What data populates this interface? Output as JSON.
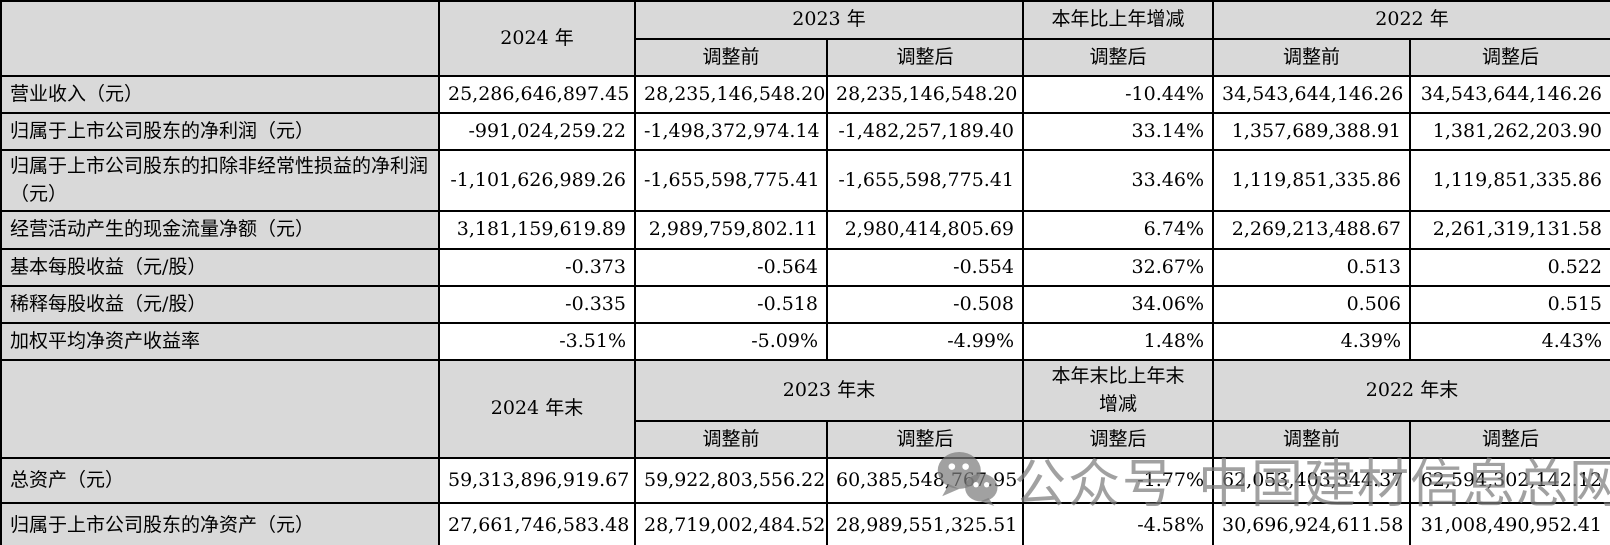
{
  "page": {
    "background": "#ffffff",
    "grid_color": "#000000",
    "header_fill": "#d9d9d9",
    "text_color": "#000000"
  },
  "table": {
    "section1": {
      "headers": {
        "y_current": "2024 年",
        "y_prior": "2023 年",
        "change": "本年比上年增减",
        "y_prior2": "2022 年",
        "adj_before": "调整前",
        "adj_after": "调整后"
      },
      "rows": [
        {
          "label": "营业收入（元）",
          "values": [
            "25,286,646,897.45",
            "28,235,146,548.20",
            "28,235,146,548.20",
            "-10.44%",
            "34,543,644,146.26",
            "34,543,644,146.26"
          ]
        },
        {
          "label": "归属于上市公司股东的净利润（元）",
          "values": [
            "-991,024,259.22",
            "-1,498,372,974.14",
            "-1,482,257,189.40",
            "33.14%",
            "1,357,689,388.91",
            "1,381,262,203.90"
          ]
        },
        {
          "label": "归属于上市公司股东的扣除非经常性损益的净利润（元）",
          "values": [
            "-1,101,626,989.26",
            "-1,655,598,775.41",
            "-1,655,598,775.41",
            "33.46%",
            "1,119,851,335.86",
            "1,119,851,335.86"
          ]
        },
        {
          "label": "经营活动产生的现金流量净额（元）",
          "values": [
            "3,181,159,619.89",
            "2,989,759,802.11",
            "2,980,414,805.69",
            "6.74%",
            "2,269,213,488.67",
            "2,261,319,131.58"
          ]
        },
        {
          "label": "基本每股收益（元/股）",
          "values": [
            "-0.373",
            "-0.564",
            "-0.554",
            "32.67%",
            "0.513",
            "0.522"
          ]
        },
        {
          "label": "稀释每股收益（元/股）",
          "values": [
            "-0.335",
            "-0.518",
            "-0.508",
            "34.06%",
            "0.506",
            "0.515"
          ]
        },
        {
          "label": "加权平均净资产收益率",
          "values": [
            "-3.51%",
            "-5.09%",
            "-4.99%",
            "1.48%",
            "4.39%",
            "4.43%"
          ]
        }
      ]
    },
    "section2": {
      "headers": {
        "y_current": "2024 年末",
        "y_prior": "2023 年末",
        "change": "本年末比上年末\n增减",
        "y_prior2": "2022 年末",
        "adj_before": "调整前",
        "adj_after": "调整后"
      },
      "rows": [
        {
          "label": "总资产（元）",
          "values": [
            "59,313,896,919.67",
            "59,922,803,556.22",
            "60,385,548,767.95",
            "-1.77%",
            "62,053,403,344.37",
            "62,594,302,142.12"
          ]
        },
        {
          "label": "归属于上市公司股东的净资产（元）",
          "values": [
            "27,661,746,583.48",
            "28,719,002,484.52",
            "28,989,551,325.51",
            "-4.58%",
            "30,696,924,611.58",
            "31,008,490,952.41"
          ]
        }
      ]
    }
  },
  "watermark": {
    "icon": "wechat-icon",
    "source_label": "公众号",
    "source_name": "中国建材信息总网",
    "color": "#7d7d7d"
  }
}
